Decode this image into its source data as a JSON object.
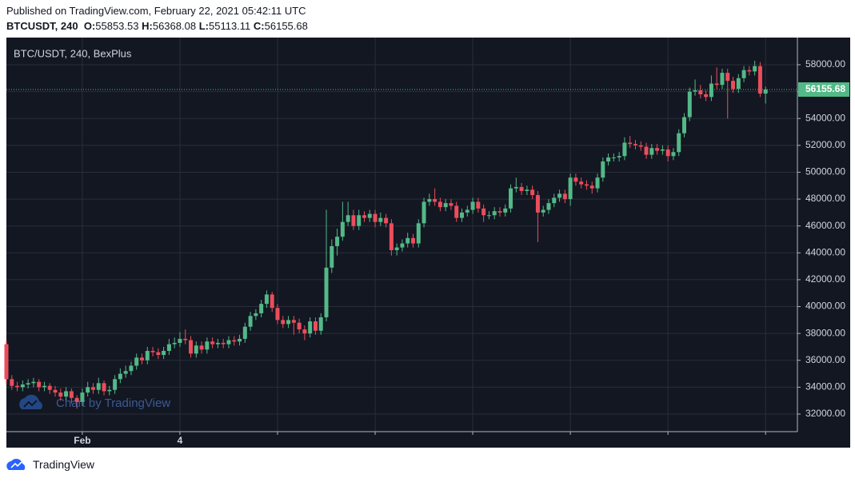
{
  "header": {
    "published": "Published on TradingView.com, February 22, 2021 05:42:11 UTC",
    "symbol": "BTCUSDT, 240",
    "o_label": "O:",
    "h_label": "H:",
    "l_label": "L:",
    "c_label": "C:"
  },
  "chart_data": {
    "type": "candlestick",
    "title": "BTC/USDT, 240, BexPlus",
    "watermark": "Chart by TradingView",
    "categories": [
      null,
      null,
      null,
      null,
      null,
      null,
      null,
      null,
      null,
      null,
      null,
      null,
      null,
      null,
      "Feb",
      null,
      null,
      null,
      null,
      null,
      null,
      null,
      null,
      null,
      null,
      null,
      null,
      null,
      null,
      null,
      null,
      null,
      "4",
      null,
      null,
      null,
      null,
      null,
      null,
      null,
      null,
      null,
      null,
      null,
      null,
      null,
      null,
      null,
      null,
      null,
      null,
      null,
      null,
      null,
      null,
      null,
      null,
      null,
      null,
      null,
      null,
      null,
      null,
      null,
      null,
      null,
      null,
      null,
      null,
      null,
      null,
      null,
      null,
      null,
      null,
      null,
      null,
      null,
      null,
      null,
      null,
      null,
      null,
      null,
      null,
      null,
      null,
      null,
      null,
      null,
      null,
      null,
      null,
      null,
      null,
      null,
      null,
      null,
      null,
      null,
      null,
      null,
      null,
      null,
      null,
      null,
      null,
      null,
      null,
      null,
      null,
      null,
      null,
      null,
      null,
      null,
      null,
      null,
      null,
      null,
      null,
      null,
      null,
      null,
      null,
      null,
      null,
      null,
      null,
      null,
      null,
      null,
      null,
      null,
      null,
      null,
      null,
      null,
      null,
      null,
      null
    ],
    "open": [
      37200,
      34600,
      34100,
      34000,
      34200,
      34300,
      34400,
      34000,
      34100,
      33800,
      33600,
      33300,
      33700,
      33200,
      32900,
      33600,
      34000,
      33800,
      34300,
      33700,
      33800,
      34600,
      35000,
      35200,
      35600,
      36200,
      36000,
      36700,
      36600,
      36400,
      36700,
      37200,
      37300,
      37600,
      37500,
      36500,
      37100,
      36800,
      37400,
      37200,
      37300,
      37200,
      37500,
      37400,
      37600,
      38500,
      39300,
      39500,
      40200,
      40900,
      39900,
      39000,
      38700,
      39000,
      38800,
      38300,
      38000,
      38900,
      38200,
      39200,
      42900,
      44500,
      45200,
      46300,
      46800,
      46000,
      46800,
      46600,
      46900,
      46300,
      46600,
      46200,
      44200,
      44400,
      44700,
      45100,
      44700,
      46200,
      47800,
      48000,
      47800,
      47400,
      47700,
      47500,
      46600,
      47000,
      47200,
      47800,
      47300,
      46800,
      46800,
      47100,
      47000,
      47300,
      48800,
      48900,
      48600,
      48700,
      48300,
      47000,
      47200,
      47700,
      48100,
      48400,
      48000,
      49600,
      49300,
      49100,
      49000,
      48800,
      49600,
      50800,
      51100,
      51100,
      51200,
      52200,
      52100,
      52000,
      51900,
      51300,
      51800,
      51600,
      51700,
      51200,
      51500,
      52900,
      54100,
      56000,
      56100,
      55800,
      55600,
      56600,
      56500,
      57400,
      56800,
      56200,
      57000,
      57600,
      57500,
      57900,
      55853.53
    ],
    "high": [
      37500,
      34900,
      34400,
      34500,
      34600,
      34700,
      34600,
      34400,
      34300,
      34100,
      33900,
      34000,
      33900,
      33400,
      33900,
      34400,
      34300,
      34700,
      34500,
      34100,
      34900,
      35400,
      35600,
      35900,
      36500,
      36500,
      37000,
      37000,
      36900,
      37000,
      37600,
      37700,
      38100,
      38300,
      37800,
      37400,
      37400,
      37700,
      37700,
      37600,
      37600,
      37800,
      37800,
      37900,
      38800,
      39600,
      39800,
      40500,
      41200,
      41100,
      40200,
      39300,
      39300,
      39300,
      39100,
      38600,
      39200,
      39200,
      39500,
      47200,
      45000,
      45800,
      47800,
      47800,
      47200,
      47200,
      47100,
      47200,
      47200,
      47000,
      46900,
      46500,
      44700,
      45000,
      45500,
      45400,
      46500,
      48100,
      48400,
      48800,
      48100,
      48000,
      48000,
      47800,
      47300,
      47500,
      48100,
      48100,
      47600,
      47100,
      47400,
      47400,
      47600,
      49100,
      49600,
      49200,
      49000,
      49000,
      48600,
      47500,
      48000,
      48400,
      48700,
      48700,
      49900,
      49900,
      49600,
      49400,
      49300,
      49900,
      51100,
      51400,
      51400,
      51500,
      52600,
      52700,
      52400,
      52300,
      52200,
      52100,
      52100,
      52000,
      52000,
      51800,
      53200,
      54400,
      56300,
      56900,
      56500,
      56100,
      57200,
      57800,
      57700,
      57700,
      57100,
      57300,
      57900,
      57900,
      58300,
      58200,
      56368.08
    ],
    "low": [
      34200,
      33800,
      33700,
      33700,
      33900,
      34000,
      33700,
      33700,
      33500,
      33300,
      33000,
      33000,
      32800,
      32400,
      32600,
      33300,
      33500,
      33500,
      33400,
      33400,
      33500,
      34300,
      34700,
      34900,
      35300,
      35700,
      35700,
      36300,
      36100,
      36100,
      36400,
      36900,
      37000,
      37200,
      36200,
      36200,
      36500,
      36500,
      36900,
      36900,
      36900,
      36900,
      37100,
      37100,
      37300,
      38200,
      39000,
      39200,
      39900,
      39600,
      38700,
      38400,
      38400,
      37900,
      38000,
      37500,
      37700,
      37900,
      37900,
      38900,
      42500,
      43800,
      44900,
      46000,
      45700,
      45700,
      46300,
      46300,
      45900,
      46000,
      45900,
      43800,
      43800,
      44100,
      44400,
      44400,
      44400,
      45900,
      47500,
      47500,
      47100,
      47100,
      47200,
      46300,
      46300,
      46700,
      46900,
      47000,
      46300,
      46500,
      46500,
      46700,
      46700,
      47000,
      48500,
      48300,
      48300,
      48000,
      44800,
      46700,
      46900,
      47400,
      47800,
      47700,
      47500,
      49000,
      48800,
      48700,
      48400,
      48500,
      49300,
      50500,
      50800,
      50800,
      50900,
      51800,
      51700,
      51600,
      51000,
      51000,
      51300,
      51300,
      50800,
      50900,
      51200,
      52600,
      53800,
      55700,
      55500,
      55300,
      55300,
      56200,
      56200,
      54000,
      55900,
      55900,
      56700,
      57200,
      57200,
      55600,
      55113.11
    ],
    "close": [
      34600,
      34100,
      34000,
      34200,
      34300,
      34400,
      34000,
      34100,
      33800,
      33600,
      33300,
      33700,
      33200,
      32900,
      33600,
      34000,
      33800,
      34300,
      33700,
      33800,
      34600,
      35000,
      35200,
      35600,
      36200,
      36000,
      36700,
      36600,
      36400,
      36700,
      37200,
      37300,
      37600,
      37500,
      36500,
      37100,
      36800,
      37400,
      37200,
      37300,
      37200,
      37500,
      37400,
      37600,
      38500,
      39300,
      39500,
      40200,
      40900,
      39900,
      39000,
      38700,
      39000,
      38800,
      38300,
      38000,
      38900,
      38200,
      39200,
      42900,
      44500,
      45200,
      46300,
      46800,
      46000,
      46800,
      46600,
      46900,
      46300,
      46600,
      46200,
      44200,
      44400,
      44700,
      45100,
      44700,
      46200,
      47800,
      48000,
      47800,
      47400,
      47700,
      47500,
      46600,
      47000,
      47200,
      47800,
      47300,
      46800,
      46800,
      47100,
      47000,
      47300,
      48800,
      48900,
      48600,
      48700,
      48300,
      47000,
      47200,
      47700,
      48100,
      48400,
      48000,
      49600,
      49300,
      49100,
      49000,
      48800,
      49600,
      50800,
      51100,
      51100,
      51200,
      52200,
      52100,
      52000,
      51900,
      51300,
      51800,
      51600,
      51700,
      51200,
      51500,
      52900,
      54100,
      56000,
      56100,
      55800,
      55600,
      56600,
      56500,
      57400,
      56800,
      56200,
      57000,
      57600,
      57500,
      57900,
      55853.53,
      56155.68
    ],
    "up_color": "#53b987",
    "down_color": "#eb4d5c",
    "ylim": [
      30691,
      60023
    ],
    "yticks": [
      {
        "value": 32000,
        "label": "32000.00"
      },
      {
        "value": 34000,
        "label": "34000.00"
      },
      {
        "value": 36000,
        "label": "36000.00"
      },
      {
        "value": 38000,
        "label": "38000.00"
      },
      {
        "value": 40000,
        "label": "40000.00"
      },
      {
        "value": 42000,
        "label": "42000.00"
      },
      {
        "value": 44000,
        "label": "44000.00"
      },
      {
        "value": 46000,
        "label": "46000.00"
      },
      {
        "value": 48000,
        "label": "48000.00"
      },
      {
        "value": 50000,
        "label": "50000.00"
      },
      {
        "value": 52000,
        "label": "52000.00"
      },
      {
        "value": 54000,
        "label": "54000.00"
      },
      {
        "value": 56000,
        "label": "56000.00"
      },
      {
        "value": 58000,
        "label": "58000.00"
      }
    ],
    "grid": true
  },
  "footer": {
    "brand": "TradingView"
  }
}
